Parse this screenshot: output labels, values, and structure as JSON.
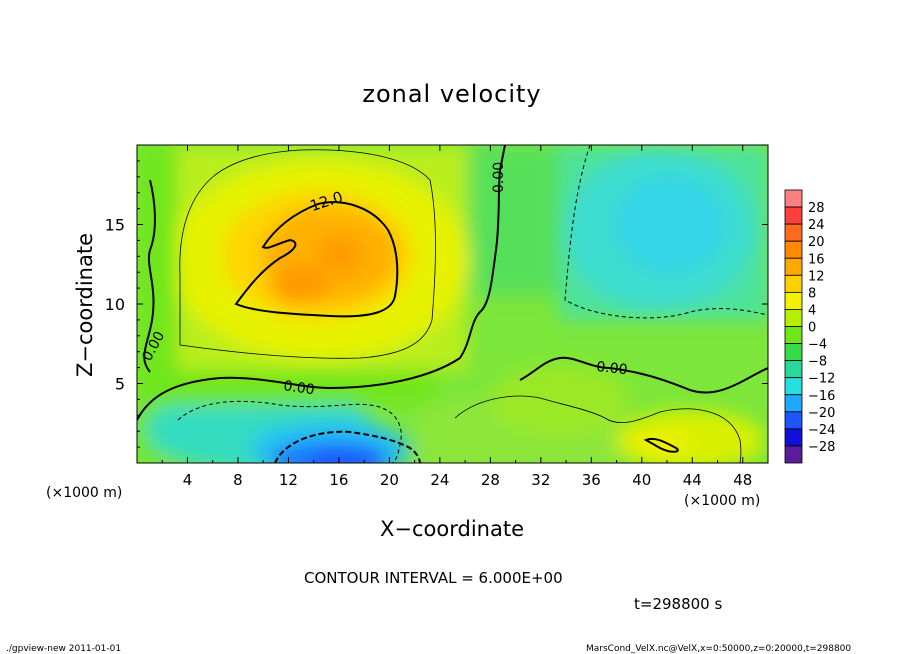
{
  "chart_data": {
    "type": "heatmap",
    "title": "zonal velocity",
    "xlabel": "X−coordinate",
    "ylabel": "Z−coordinate",
    "x_unit_left": "(×1000 m)",
    "x_unit_right": "(×1000 m)",
    "xlim": [
      0,
      50
    ],
    "ylim": [
      0,
      20
    ],
    "x_ticks": [
      4,
      8,
      12,
      16,
      20,
      24,
      28,
      32,
      36,
      40,
      44,
      48
    ],
    "y_ticks": [
      5,
      10,
      15
    ],
    "colorbar": {
      "labels": [
        "28",
        "24",
        "20",
        "16",
        "12",
        "8",
        "4",
        "0",
        "−4",
        "−8",
        "−12",
        "−16",
        "−20",
        "−24",
        "−28"
      ],
      "colors": [
        "#ff3e3e",
        "#ff6a1e",
        "#ff8a00",
        "#ffa800",
        "#ffd000",
        "#f2f200",
        "#b8ef00",
        "#6fe61a",
        "#37db47",
        "#27d99a",
        "#27dfdf",
        "#1fa8ff",
        "#1f55ff",
        "#1010d8",
        "#5a1c9e"
      ],
      "top_color": "#ff8080"
    },
    "contour_labels": [
      "12.0",
      "0.00",
      "0.00",
      "0.00",
      "0.00"
    ],
    "contour_interval_text": "CONTOUR INTERVAL = 6.000E+00",
    "time_text": "t=298800  s"
  },
  "footer": {
    "left": "./gpview-new   2011-01-01",
    "right": "MarsCond_VelX.nc@VelX,x=0:50000,z=0:20000,t=298800"
  }
}
